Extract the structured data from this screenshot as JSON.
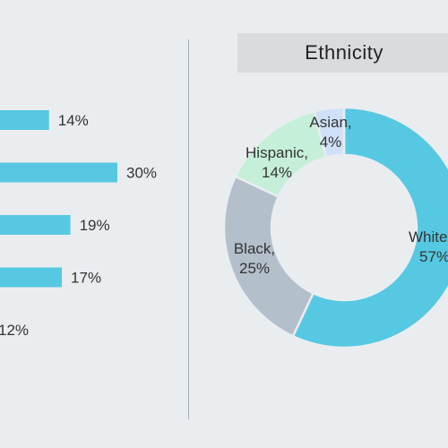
{
  "colors": {
    "background": "#eaedf0",
    "bar": "#56c8e2",
    "donut_white": "#56c8e2",
    "donut_black": "#b3bfcb",
    "donut_hispanic": "#c6efd9",
    "donut_asian": "#cfe0f7",
    "title_box": "#d9dbde",
    "text": "#333333"
  },
  "chart_data": [
    {
      "type": "bar",
      "orientation": "horizontal",
      "values": [
        14,
        30,
        19,
        17,
        12
      ],
      "value_labels": [
        "14%",
        "30%",
        "19%",
        "17%",
        "12%"
      ],
      "xlim": [
        0,
        30
      ],
      "grid": false
    },
    {
      "type": "pie",
      "style": "donut",
      "title": "Ethnicity",
      "slices": [
        {
          "name": "White,",
          "value": 57,
          "label": "57%"
        },
        {
          "name": "Black,",
          "value": 25,
          "label": "25%"
        },
        {
          "name": "Hispanic,",
          "value": 14,
          "label": "14%"
        },
        {
          "name": "Asian,",
          "value": 4,
          "label": "4%"
        }
      ]
    }
  ]
}
